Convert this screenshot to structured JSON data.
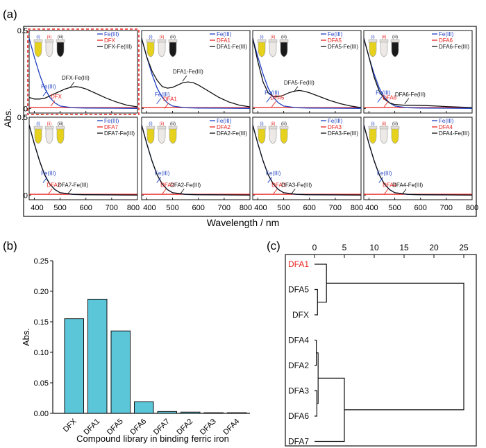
{
  "panel_labels": {
    "a": "(a)",
    "b": "(b)",
    "c": "(c)"
  },
  "colors": {
    "fe": "#1f3fbf",
    "ligand": "#e8231f",
    "complex": "#111111",
    "bar": "#5bc6d8",
    "highlight": "#e8231f",
    "tube_yellow": "#e6d21c",
    "tube_clear": "#ece9e6",
    "tube_dark": "#1a1a1a"
  },
  "chart_data": [
    {
      "type": "line",
      "id": "uv_vis",
      "xlabel": "Wavelength / nm",
      "ylabel": "Abs.",
      "xlim": [
        380,
        800
      ],
      "ylim": [
        -0.03,
        0.5
      ],
      "xticks": [
        "400",
        "500",
        "600",
        "700",
        "800"
      ],
      "yticks_row1": [
        "0.5",
        "0"
      ],
      "yticks_row2": [
        "0.5",
        "0"
      ],
      "tube_labels": [
        "(i)",
        "(ii)",
        "(iii)"
      ],
      "fe_series": {
        "name": "Fe(III)",
        "x": [
          380,
          400,
          420,
          440,
          460,
          480,
          500,
          550,
          600,
          700,
          800
        ],
        "y": [
          0.45,
          0.33,
          0.22,
          0.13,
          0.07,
          0.035,
          0.015,
          0.004,
          0.002,
          0.001,
          0.0
        ]
      },
      "panels": [
        {
          "ligand": "DFX",
          "complex": "DFX-Fe(III)",
          "tubes": [
            "yellow",
            "clear",
            "dark"
          ],
          "highlight": true,
          "ligand_y": 0.005,
          "complex_x": [
            380,
            400,
            420,
            440,
            460,
            480,
            500,
            520,
            540,
            560,
            580,
            600,
            640,
            680,
            720,
            760,
            800
          ],
          "complex_y": [
            0.07,
            0.06,
            0.06,
            0.065,
            0.08,
            0.095,
            0.11,
            0.125,
            0.135,
            0.14,
            0.135,
            0.125,
            0.095,
            0.065,
            0.04,
            0.02,
            0.01
          ],
          "ann_fe": [
            455,
            0.11
          ],
          "ann_lig": [
            485,
            0.045
          ],
          "ann_cx": [
            560,
            0.165
          ]
        },
        {
          "ligand": "DFA1",
          "complex": "DFA1-Fe(III)",
          "tubes": [
            "yellow",
            "clear",
            "dark"
          ],
          "highlight": false,
          "ligand_y": 0.005,
          "complex_x": [
            380,
            400,
            420,
            440,
            460,
            480,
            500,
            520,
            540,
            560,
            580,
            600,
            640,
            680,
            720,
            760,
            800
          ],
          "complex_y": [
            0.45,
            0.33,
            0.24,
            0.18,
            0.14,
            0.13,
            0.135,
            0.15,
            0.165,
            0.17,
            0.165,
            0.15,
            0.11,
            0.07,
            0.04,
            0.02,
            0.01
          ],
          "ann_fe": [
            460,
            0.06
          ],
          "ann_lig": [
            490,
            0.03
          ],
          "ann_cx": [
            560,
            0.205
          ]
        },
        {
          "ligand": "DFA5",
          "complex": "DFA5-Fe(III)",
          "tubes": [
            "yellow",
            "clear",
            "dark"
          ],
          "highlight": false,
          "ligand_y": 0.005,
          "complex_x": [
            380,
            400,
            420,
            440,
            460,
            480,
            500,
            520,
            540,
            560,
            580,
            600,
            640,
            680,
            720,
            760,
            800
          ],
          "complex_y": [
            0.45,
            0.3,
            0.17,
            0.1,
            0.075,
            0.075,
            0.085,
            0.1,
            0.11,
            0.115,
            0.11,
            0.1,
            0.075,
            0.05,
            0.03,
            0.015,
            0.005
          ],
          "ann_fe": [
            455,
            0.07
          ],
          "ann_lig": [
            475,
            0.04
          ],
          "ann_cx": [
            560,
            0.135
          ]
        },
        {
          "ligand": "DFA6",
          "complex": "DFA6-Fe(III)",
          "tubes": [
            "yellow",
            "clear",
            "dark"
          ],
          "highlight": false,
          "ligand_y": 0.005,
          "complex_x": [
            380,
            400,
            420,
            440,
            460,
            480,
            500,
            540,
            580,
            620,
            660,
            700,
            760,
            800
          ],
          "complex_y": [
            0.45,
            0.33,
            0.2,
            0.11,
            0.06,
            0.035,
            0.025,
            0.02,
            0.02,
            0.018,
            0.015,
            0.012,
            0.008,
            0.005
          ],
          "ann_fe": [
            455,
            0.07
          ],
          "ann_lig": [
            480,
            0.04
          ],
          "ann_cx": [
            560,
            0.06
          ]
        },
        {
          "ligand": "DFA7",
          "complex": "DFA7-Fe(III)",
          "tubes": [
            "yellow",
            "clear",
            "yellow"
          ],
          "highlight": false,
          "ligand_y": 0.005,
          "complex_x": [
            380,
            400,
            420,
            440,
            460,
            480,
            500,
            550,
            600,
            700,
            800
          ],
          "complex_y": [
            0.45,
            0.33,
            0.22,
            0.13,
            0.07,
            0.035,
            0.015,
            0.005,
            0.002,
            0.001,
            0.0
          ],
          "ann_fe": [
            455,
            0.11
          ],
          "ann_lig": [
            475,
            0.035
          ],
          "ann_cx": [
            550,
            0.035
          ]
        },
        {
          "ligand": "DFA2",
          "complex": "DFA2-Fe(III)",
          "tubes": [
            "yellow",
            "clear",
            "yellow"
          ],
          "highlight": false,
          "ligand_y": 0.005,
          "complex_x": [
            380,
            400,
            420,
            440,
            460,
            480,
            500,
            550,
            600,
            700,
            800
          ],
          "complex_y": [
            0.45,
            0.33,
            0.22,
            0.13,
            0.07,
            0.035,
            0.015,
            0.005,
            0.002,
            0.001,
            0.0
          ],
          "ann_fe": [
            460,
            0.11
          ],
          "ann_lig": [
            480,
            0.035
          ],
          "ann_cx": [
            550,
            0.035
          ]
        },
        {
          "ligand": "DFA3",
          "complex": "DFA3-Fe(III)",
          "tubes": [
            "yellow",
            "clear",
            "yellow"
          ],
          "highlight": false,
          "ligand_y": 0.005,
          "complex_x": [
            380,
            400,
            420,
            440,
            460,
            480,
            500,
            550,
            600,
            700,
            800
          ],
          "complex_y": [
            0.45,
            0.33,
            0.22,
            0.13,
            0.07,
            0.035,
            0.015,
            0.005,
            0.002,
            0.001,
            0.0
          ],
          "ann_fe": [
            460,
            0.11
          ],
          "ann_lig": [
            480,
            0.035
          ],
          "ann_cx": [
            550,
            0.035
          ]
        },
        {
          "ligand": "DFA4",
          "complex": "DFA4-Fe(III)",
          "tubes": [
            "yellow",
            "clear",
            "yellow"
          ],
          "highlight": false,
          "ligand_y": 0.005,
          "complex_x": [
            380,
            400,
            420,
            440,
            460,
            480,
            500,
            550,
            600,
            700,
            800
          ],
          "complex_y": [
            0.45,
            0.33,
            0.22,
            0.13,
            0.07,
            0.035,
            0.015,
            0.005,
            0.002,
            0.001,
            0.0
          ],
          "ann_fe": [
            460,
            0.11
          ],
          "ann_lig": [
            480,
            0.035
          ],
          "ann_cx": [
            550,
            0.035
          ]
        }
      ]
    },
    {
      "type": "bar",
      "id": "binding",
      "categories": [
        "DFX",
        "DFA1",
        "DFA5",
        "DFA6",
        "DFA7",
        "DFA2",
        "DFA3",
        "DFA4"
      ],
      "values": [
        0.155,
        0.187,
        0.135,
        0.019,
        0.003,
        0.002,
        0.001,
        0.001
      ],
      "xlabel": "Compound library in binding ferric iron",
      "ylabel": "Abs.",
      "ylim": [
        0,
        0.25
      ],
      "yticks": [
        "0.00",
        "0.05",
        "0.10",
        "0.15",
        "0.20",
        "0.25"
      ]
    },
    {
      "type": "dendrogram",
      "id": "clustering",
      "xlim": [
        0,
        25
      ],
      "xticks": [
        "0",
        "5",
        "10",
        "15",
        "20",
        "25"
      ],
      "leaves": [
        "DFA1",
        "DFA5",
        "DFX",
        "DFA4",
        "DFA2",
        "DFA3",
        "DFA6",
        "DFA7"
      ],
      "highlight_leaf": "DFA1",
      "merges": [
        {
          "left": 1,
          "right": 2,
          "height": 0.5
        },
        {
          "left": 0,
          "right": "m0",
          "height": 2.0
        },
        {
          "left": 3,
          "right": 4,
          "height": 0.3
        },
        {
          "left": 5,
          "right": 6,
          "height": 0.4
        },
        {
          "left": "m2",
          "right": "m3",
          "height": 0.6
        },
        {
          "left": "m4",
          "right": 7,
          "height": 5.0
        },
        {
          "left": "m1",
          "right": "m5",
          "height": 25.0
        }
      ]
    }
  ]
}
